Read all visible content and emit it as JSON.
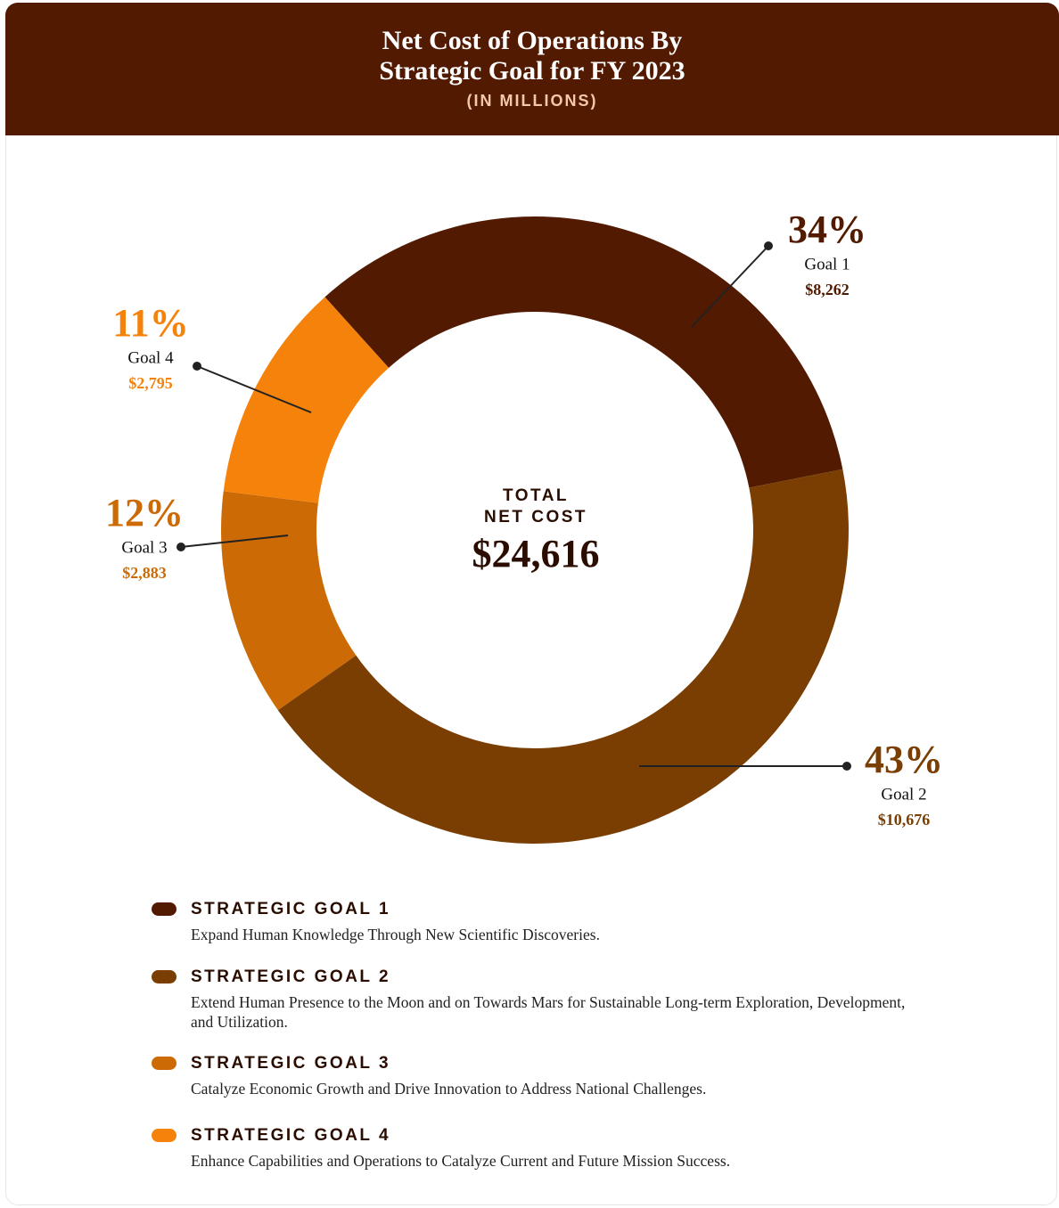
{
  "chart_data": {
    "type": "donut",
    "title": "Net Cost of Operations By Strategic Goal for FY 2023",
    "subtitle": "(IN MILLIONS)",
    "categories": [
      "Goal 1",
      "Goal 2",
      "Goal 3",
      "Goal 4"
    ],
    "values": [
      8262,
      10676,
      2883,
      2795
    ],
    "value_labels": [
      "$8,262",
      "$10,676",
      "$2,883",
      "$2,795"
    ],
    "percent_labels": [
      "34%",
      "43%",
      "12%",
      "11%"
    ],
    "colors": [
      "#521a00",
      "#7a3e02",
      "#cc6a05",
      "#f5820a"
    ],
    "total_title": [
      "TOTAL",
      "NET COST"
    ],
    "total": 24616,
    "total_label": "$24,616",
    "legend": [
      {
        "name": "STRATEGIC GOAL 1",
        "description": "Expand Human Knowledge Through New Scientific Discoveries."
      },
      {
        "name": "STRATEGIC GOAL 2",
        "description": "Extend Human Presence to the Moon and on Towards Mars for Sustainable Long-term Exploration, Development, and Utilization."
      },
      {
        "name": "STRATEGIC GOAL 3",
        "description": "Catalyze Economic Growth and Drive Innovation to Address National Challenges."
      },
      {
        "name": "STRATEGIC GOAL 4",
        "description": "Enhance Capabilities and Operations to Catalyze Current and Future Mission Success."
      }
    ]
  }
}
